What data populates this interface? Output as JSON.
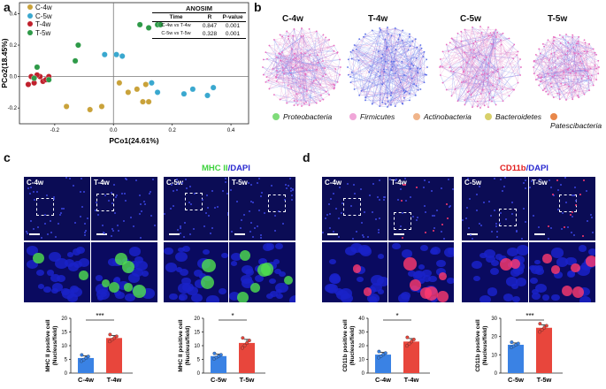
{
  "panels": {
    "a": "a",
    "b": "b",
    "c": "c",
    "d": "d"
  },
  "pcoa": {
    "chart_data": {
      "type": "scatter",
      "xlabel": "PCo1(24.61%)",
      "ylabel": "PCo2(18.45%)",
      "xticks": [
        "-0.2",
        "0.0",
        "0.2",
        "0.4"
      ],
      "yticks": [
        "0.4",
        "0.2",
        "0.0",
        "-0.2"
      ],
      "xlim": [
        -0.32,
        0.46
      ],
      "ylim": [
        -0.3,
        0.47
      ],
      "series": [
        {
          "name": "C-4w",
          "color": "#c9a23a",
          "points": [
            [
              -0.16,
              -0.19
            ],
            [
              -0.08,
              -0.21
            ],
            [
              -0.04,
              -0.19
            ],
            [
              0.02,
              -0.04
            ],
            [
              0.05,
              -0.1
            ],
            [
              0.08,
              -0.08
            ],
            [
              0.11,
              -0.05
            ],
            [
              0.1,
              -0.16
            ],
            [
              0.12,
              -0.16
            ]
          ]
        },
        {
          "name": "C-5w",
          "color": "#3aa8cf",
          "points": [
            [
              -0.03,
              0.14
            ],
            [
              0.01,
              0.14
            ],
            [
              0.03,
              0.13
            ],
            [
              0.13,
              -0.04
            ],
            [
              0.15,
              -0.1
            ],
            [
              0.24,
              -0.11
            ],
            [
              0.27,
              -0.08
            ],
            [
              0.32,
              -0.12
            ],
            [
              0.34,
              -0.07
            ]
          ]
        },
        {
          "name": "T-4w",
          "color": "#c0202c",
          "points": [
            [
              -0.29,
              -0.05
            ],
            [
              -0.28,
              0.0
            ],
            [
              -0.27,
              -0.04
            ],
            [
              -0.25,
              0.0
            ],
            [
              -0.24,
              -0.03
            ],
            [
              -0.23,
              -0.02
            ],
            [
              -0.22,
              0.0
            ],
            [
              -0.26,
              0.01
            ]
          ]
        },
        {
          "name": "T-5w",
          "color": "#2e9a48",
          "points": [
            [
              -0.13,
              0.1
            ],
            [
              -0.12,
              0.2
            ],
            [
              -0.22,
              -0.02
            ],
            [
              -0.27,
              -0.01
            ],
            [
              -0.26,
              0.06
            ],
            [
              0.09,
              0.33
            ],
            [
              0.12,
              0.31
            ],
            [
              0.15,
              0.33
            ],
            [
              0.16,
              0.33
            ]
          ]
        }
      ]
    },
    "legend": [
      "C-4w",
      "C-5w",
      "T-4w",
      "T-5w"
    ],
    "anosim": {
      "title": "ANOSIM",
      "headers": [
        "Time",
        "R",
        "P-value"
      ],
      "rows": [
        [
          "C-4w vs T-4w",
          "0.847",
          "0.001"
        ],
        [
          "C-5w vs T-5w",
          "0.328",
          "0.001"
        ]
      ]
    }
  },
  "networks": {
    "titles": [
      "C-4w",
      "T-4w",
      "C-5w",
      "T-5w"
    ],
    "legend": [
      {
        "name": "Proteobacteria",
        "color": "#7fdc7a"
      },
      {
        "name": "Firmicutes",
        "color": "#f0a6d8"
      },
      {
        "name": "Actinobacteria",
        "color": "#f0b48a"
      },
      {
        "name": "Bacteroidetes",
        "color": "#d8d06a"
      },
      {
        "name": "Patescibacteria",
        "color": "#e8874a"
      }
    ]
  },
  "panel_c": {
    "stain_marker": "MHC II",
    "stain_sep": "/",
    "stain_dapi": "DAPI",
    "images": [
      "C-4w",
      "T-4w",
      "C-5w",
      "T-5w"
    ],
    "charts": [
      {
        "chart_data": {
          "type": "bar",
          "categories": [
            "C-4w",
            "T-4w"
          ],
          "values": [
            5.5,
            12.8
          ],
          "errors": [
            0.8,
            0.9
          ],
          "ylim": [
            0,
            20
          ],
          "yticks": [
            "0",
            "5",
            "10",
            "15",
            "20"
          ],
          "ylabel": "MHC II positive cell\n(Nucleus/field)",
          "significance": "***",
          "bar_colors": [
            "#3a82e4",
            "#e8463c"
          ]
        }
      },
      {
        "chart_data": {
          "type": "bar",
          "categories": [
            "C-5w",
            "T-5w"
          ],
          "values": [
            6.2,
            11.0
          ],
          "errors": [
            0.7,
            1.3
          ],
          "ylim": [
            0,
            20
          ],
          "yticks": [
            "0",
            "5",
            "10",
            "15",
            "20"
          ],
          "ylabel": "MHC II positive cell\n(Nucleus/field)",
          "significance": "*",
          "bar_colors": [
            "#3a82e4",
            "#e8463c"
          ]
        }
      }
    ]
  },
  "panel_d": {
    "stain_marker": "CD11b",
    "stain_sep": "/",
    "stain_dapi": "DAPI",
    "images": [
      "C-4w",
      "T-4w",
      "C-5w",
      "T-5w"
    ],
    "charts": [
      {
        "chart_data": {
          "type": "bar",
          "categories": [
            "C-4w",
            "T-4w"
          ],
          "values": [
            13.5,
            23.0
          ],
          "errors": [
            1.6,
            2.2
          ],
          "ylim": [
            0,
            40
          ],
          "yticks": [
            "0",
            "10",
            "20",
            "30",
            "40"
          ],
          "ylabel": "CD11b positive cell\n(Nucleus/field)",
          "significance": "*",
          "bar_colors": [
            "#3a82e4",
            "#e8463c"
          ]
        }
      },
      {
        "chart_data": {
          "type": "bar",
          "categories": [
            "C-5w",
            "T-5w"
          ],
          "values": [
            15.5,
            24.8
          ],
          "errors": [
            1.0,
            1.6
          ],
          "ylim": [
            0,
            30
          ],
          "yticks": [
            "0",
            "10",
            "20",
            "30"
          ],
          "ylabel": "CD11b positive cell\n(Nucleus/field)",
          "significance": "***",
          "bar_colors": [
            "#3a82e4",
            "#e8463c"
          ]
        }
      }
    ]
  }
}
